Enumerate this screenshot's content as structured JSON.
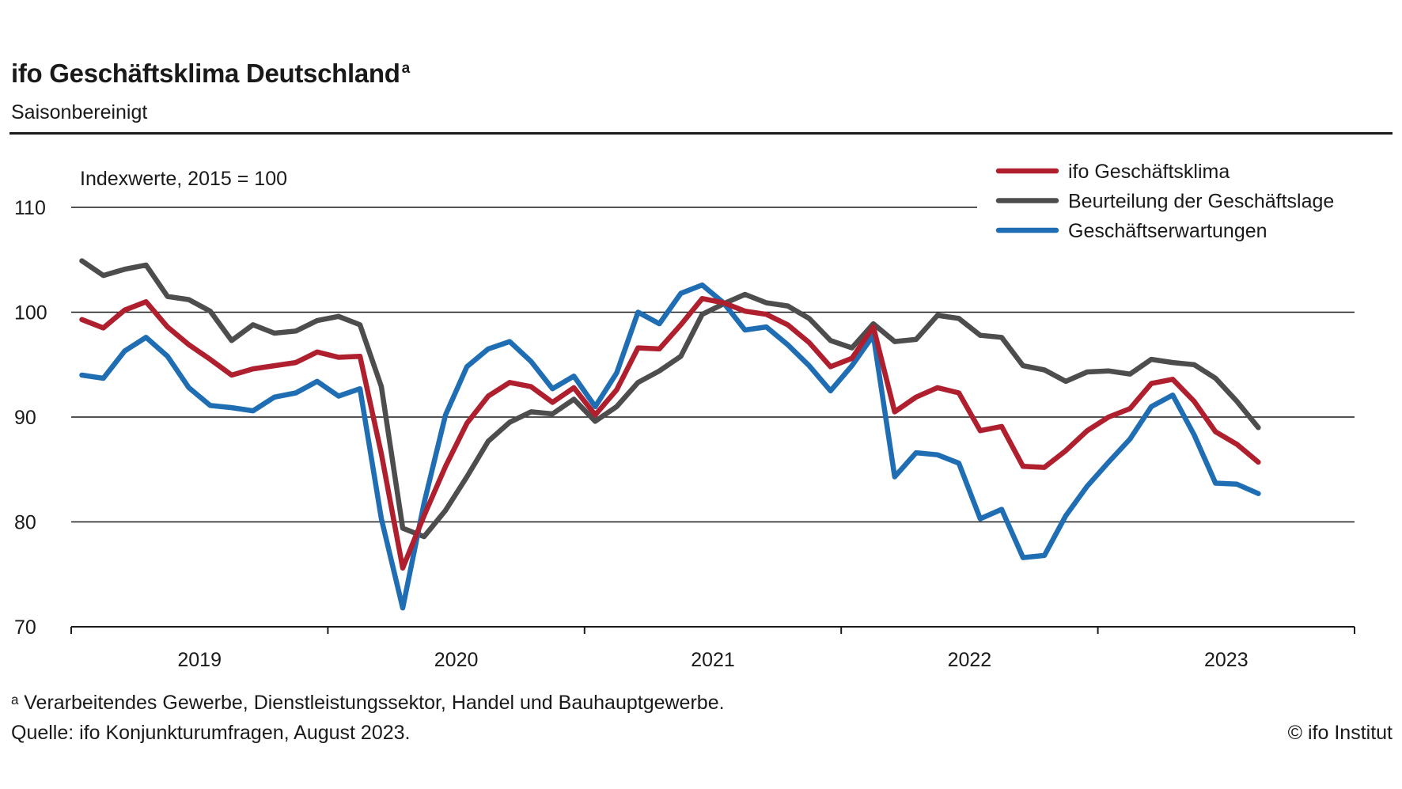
{
  "header": {
    "title": "ifo Geschäftsklima Deutschland",
    "title_superscript": "a",
    "subtitle": "Saisonbereinigt"
  },
  "unit_note": "Indexwerte, 2015 = 100",
  "footer": {
    "footnote": "ᵃ Verarbeitendes Gewerbe, Dienstleistungssektor, Handel und Bauhauptgewerbe.",
    "source": "Quelle: ifo Konjunkturumfragen, August 2023.",
    "copyright": "© ifo Institut"
  },
  "colors": {
    "ifo_klima": "#b01f2e",
    "lage": "#4d4d4d",
    "erwartungen": "#1f6eb4",
    "axis": "#1a1a1a",
    "text": "#1a1a1a"
  },
  "chart_data": {
    "type": "line",
    "title": "ifo Geschäftsklima Deutschland",
    "subtitle": "Saisonbereinigt",
    "ylabel": "Indexwerte, 2015 = 100",
    "xlabel": "",
    "ylim": [
      70,
      110
    ],
    "yticks": [
      70,
      80,
      90,
      100,
      110
    ],
    "x_period": {
      "first": "2019-01",
      "last": "2023-08",
      "frequency": "monthly"
    },
    "xlim": [
      "2019-01",
      "2023-12"
    ],
    "x_tick_labels": [
      "2019",
      "2020",
      "2021",
      "2022",
      "2023"
    ],
    "grid": "horizontal",
    "legend_position": "top-right",
    "series": [
      {
        "name": "ifo Geschäftsklima",
        "color": "#b01f2e",
        "values": [
          99.3,
          98.5,
          100.2,
          101.0,
          98.6,
          96.9,
          95.5,
          94.0,
          94.6,
          94.9,
          95.2,
          96.2,
          95.7,
          95.8,
          86.5,
          75.6,
          80.6,
          85.3,
          89.4,
          92.0,
          93.3,
          92.9,
          91.4,
          92.8,
          90.2,
          92.6,
          96.6,
          96.5,
          98.8,
          101.3,
          100.9,
          100.1,
          99.8,
          98.8,
          97.1,
          94.8,
          95.6,
          98.6,
          90.5,
          91.9,
          92.8,
          92.3,
          88.7,
          89.1,
          85.3,
          85.2,
          86.8,
          88.7,
          90.0,
          90.8,
          93.2,
          93.6,
          91.5,
          88.6,
          87.4,
          85.7
        ]
      },
      {
        "name": "Beurteilung der Geschäftslage",
        "color": "#4d4d4d",
        "values": [
          104.9,
          103.5,
          104.1,
          104.5,
          101.5,
          101.2,
          100.1,
          97.3,
          98.8,
          98.0,
          98.2,
          99.2,
          99.6,
          98.8,
          92.9,
          79.4,
          78.6,
          81.1,
          84.3,
          87.7,
          89.5,
          90.5,
          90.3,
          91.7,
          89.6,
          91.0,
          93.3,
          94.4,
          95.8,
          99.8,
          100.8,
          101.7,
          100.9,
          100.6,
          99.4,
          97.3,
          96.6,
          98.9,
          97.2,
          97.4,
          99.7,
          99.4,
          97.8,
          97.6,
          94.9,
          94.5,
          93.4,
          94.3,
          94.4,
          94.1,
          95.5,
          95.2,
          95.0,
          93.7,
          91.5,
          89.0
        ]
      },
      {
        "name": "Geschäftserwartungen",
        "color": "#1f6eb4",
        "values": [
          94.0,
          93.7,
          96.3,
          97.6,
          95.8,
          92.8,
          91.1,
          90.9,
          90.6,
          91.9,
          92.3,
          93.4,
          92.0,
          92.7,
          80.3,
          71.8,
          81.8,
          90.2,
          94.8,
          96.5,
          97.2,
          95.3,
          92.7,
          93.9,
          91.0,
          94.2,
          100.0,
          98.9,
          101.8,
          102.6,
          100.9,
          98.3,
          98.6,
          96.9,
          94.9,
          92.5,
          94.9,
          97.8,
          84.3,
          86.6,
          86.4,
          85.6,
          80.3,
          81.2,
          76.6,
          76.8,
          80.6,
          83.4,
          85.7,
          87.9,
          91.0,
          92.1,
          88.3,
          83.7,
          83.6,
          82.7
        ]
      }
    ]
  }
}
